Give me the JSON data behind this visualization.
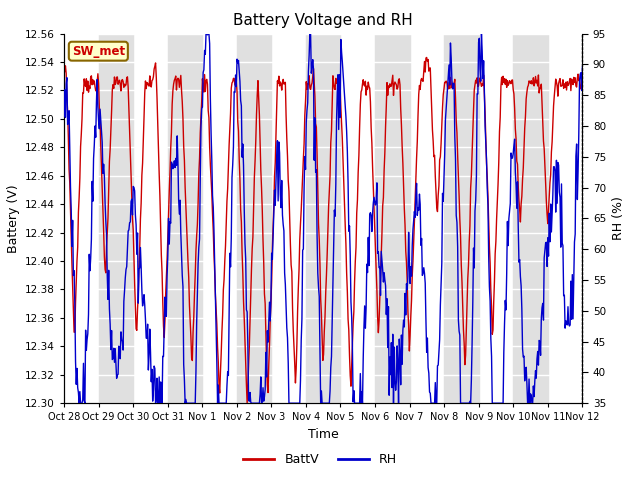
{
  "title": "Battery Voltage and RH",
  "xlabel": "Time",
  "ylabel_left": "Battery (V)",
  "ylabel_right": "RH (%)",
  "ylim_left": [
    12.3,
    12.56
  ],
  "ylim_right": [
    35,
    95
  ],
  "station_label": "SW_met",
  "station_label_color": "#cc0000",
  "station_label_bg": "#ffffcc",
  "station_label_border": "#886600",
  "xtick_labels": [
    "Oct 28",
    "Oct 29",
    "Oct 30",
    "Oct 31",
    "Nov 1",
    "Nov 2",
    "Nov 3",
    "Nov 4",
    "Nov 5",
    "Nov 6",
    "Nov 7",
    "Nov 8",
    "Nov 9",
    "Nov 10",
    "Nov 11",
    "Nov 12"
  ],
  "batt_color": "#cc0000",
  "rh_color": "#0000cc",
  "legend_batt": "BattV",
  "legend_rh": "RH",
  "bg_band_color": "#e0e0e0",
  "n_days": 15
}
